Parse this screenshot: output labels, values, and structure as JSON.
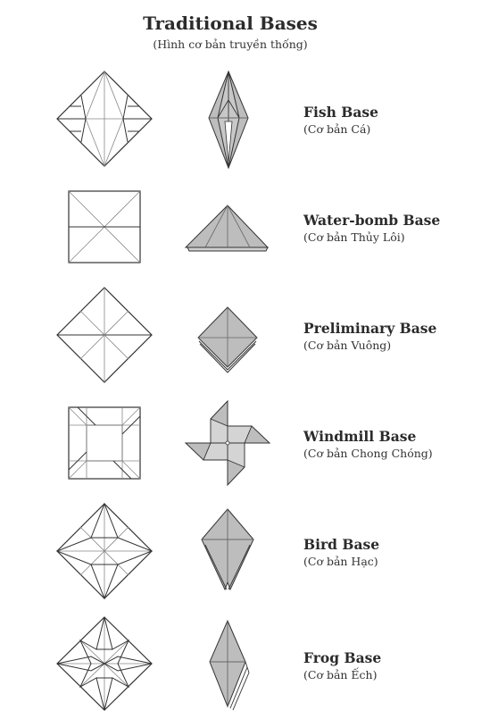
{
  "header": {
    "title": "Traditional Bases",
    "subtitle": "(Hình cơ bản truyền thống)"
  },
  "bases": [
    {
      "name": "Fish Base",
      "viet": "(Cơ bản Cá)"
    },
    {
      "name": "Water-bomb Base",
      "viet": "(Cơ bản Thủy Lôi)"
    },
    {
      "name": "Preliminary Base",
      "viet": "(Cơ bản Vuông)"
    },
    {
      "name": "Windmill Base",
      "viet": "(Cơ bản Chong Chóng)"
    },
    {
      "name": "Bird Base",
      "viet": "(Cơ bản Hạc)"
    },
    {
      "name": "Frog Base",
      "viet": "(Cơ bản Ếch)"
    }
  ],
  "colors": {
    "fold_fill": "#bdbdbd",
    "line": "#333333",
    "crease": "#9a9a9a"
  }
}
